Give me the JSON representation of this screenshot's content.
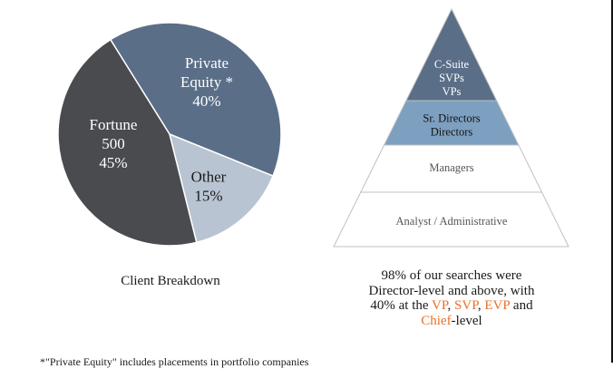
{
  "chart_data": [
    {
      "type": "pie",
      "title": "Client Breakdown",
      "slices": [
        {
          "name_lines": [
            "Private",
            "Equity *",
            "40%"
          ],
          "value": 40,
          "color": "#5a6e88"
        },
        {
          "name_lines": [
            "Other",
            "15%"
          ],
          "value": 15,
          "color": "#b8c4d2"
        },
        {
          "name_lines": [
            "Fortune",
            "500",
            "45%"
          ],
          "value": 45,
          "color": "#4a4b4f"
        }
      ]
    },
    {
      "type": "pyramid",
      "levels": [
        {
          "lines": [
            "C-Suite",
            "SVPs",
            "VPs"
          ],
          "color": "#5a6e88",
          "text_color": "#ffffff"
        },
        {
          "lines": [
            "Sr. Directors",
            "Directors"
          ],
          "color": "#7da0c0",
          "text_color": "#111111"
        },
        {
          "lines": [
            "Managers"
          ],
          "color": "#ffffff",
          "text_color": "#555555"
        },
        {
          "lines": [
            "Analyst / Administrative"
          ],
          "color": "#ffffff",
          "text_color": "#555555"
        }
      ]
    }
  ],
  "captions": {
    "left": "Client Breakdown",
    "right_line1": "98% of our searches were",
    "right_line2": "Director-level and above, with",
    "right_prefix": "40% at the ",
    "vp": "VP",
    "sep1": ", ",
    "svp": "SVP",
    "sep2": ", ",
    "evp": "EVP",
    "and": " and",
    "chief": "Chief",
    "suffix": "-level"
  },
  "footnote": "*\"Private Equity\" includes placements in portfolio companies",
  "colors": {
    "accent_orange": "#e8702a"
  }
}
